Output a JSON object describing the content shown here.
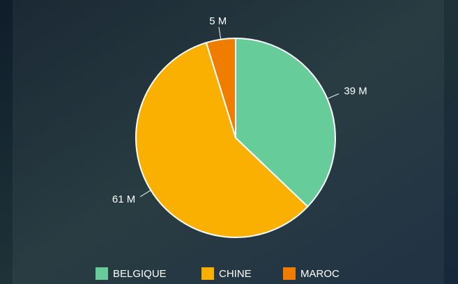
{
  "chart_data": {
    "type": "pie",
    "categories": [
      "BELGIQUE",
      "CHINE",
      "MAROC"
    ],
    "values": [
      39,
      61,
      5
    ],
    "value_labels": [
      "39 M",
      "61 M",
      "5 M"
    ],
    "colors": [
      "#66cc99",
      "#f9b000",
      "#f07d00"
    ],
    "legend": "bottom"
  }
}
